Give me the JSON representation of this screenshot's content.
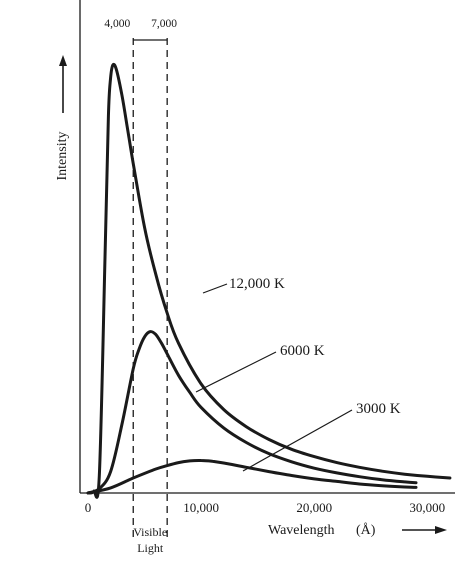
{
  "chart_data": {
    "type": "line",
    "title": "",
    "xlabel": "Wavelength",
    "xunit": "(Å)",
    "ylabel": "Intensity",
    "xlim": [
      0,
      32000
    ],
    "x_ticks": [
      {
        "value": 0,
        "label": "0"
      },
      {
        "value": 10000,
        "label": "10,000"
      },
      {
        "value": 20000,
        "label": "20,000"
      },
      {
        "value": 30000,
        "label": "30,000"
      }
    ],
    "y_tick_labels": false,
    "grid": false,
    "visible_band": {
      "start": 4000,
      "end": 7000,
      "start_label": "4,000",
      "end_label": "7,000",
      "label_line1": "Visible",
      "label_line2": "Light"
    },
    "series": [
      {
        "name": "12,000 K",
        "x": [
          0,
          500,
          1000,
          1500,
          1800,
          2000,
          2200,
          2500,
          3000,
          3500,
          4000,
          5000,
          6000,
          7000,
          8000,
          10000,
          12000,
          14000,
          16000,
          18000,
          20000,
          22000,
          24000,
          26000,
          28000,
          30000,
          32000
        ],
        "y": [
          0,
          0.4,
          4,
          55,
          88,
          97,
          100,
          99,
          93,
          85,
          77,
          62,
          51,
          42,
          35,
          25.5,
          19.5,
          15.5,
          12.5,
          10.2,
          8.5,
          7.1,
          6.0,
          5.1,
          4.4,
          3.9,
          3.5
        ]
      },
      {
        "name": "6000 K",
        "x": [
          0,
          1000,
          2000,
          3000,
          4000,
          4500,
          5000,
          5500,
          6000,
          6500,
          7000,
          8000,
          9000,
          10000,
          12000,
          14000,
          16000,
          18000,
          20000,
          22000,
          24000,
          26000,
          28000,
          29000
        ],
        "y": [
          0,
          1,
          5,
          16,
          29,
          33.5,
          36.5,
          37.7,
          37,
          35,
          32.5,
          27.5,
          23.5,
          20,
          15.2,
          11.8,
          9.2,
          7.3,
          5.8,
          4.7,
          3.8,
          3.1,
          2.6,
          2.4
        ]
      },
      {
        "name": "3000 K",
        "x": [
          0,
          2000,
          4000,
          6000,
          7000,
          8000,
          9000,
          10000,
          11000,
          12000,
          14000,
          16000,
          18000,
          20000,
          22000,
          24000,
          26000,
          28000,
          29000
        ],
        "y": [
          0,
          1.2,
          3.5,
          5.6,
          6.4,
          7.1,
          7.5,
          7.6,
          7.4,
          7.0,
          6.0,
          5.0,
          4.1,
          3.3,
          2.7,
          2.1,
          1.7,
          1.4,
          1.3
        ]
      }
    ],
    "curve_labels": [
      "12,000 K",
      "6000 K",
      "3000 K"
    ],
    "annotations": [
      "arrow-up beside Intensity",
      "arrow-right beside Wavelength (Å)"
    ]
  }
}
